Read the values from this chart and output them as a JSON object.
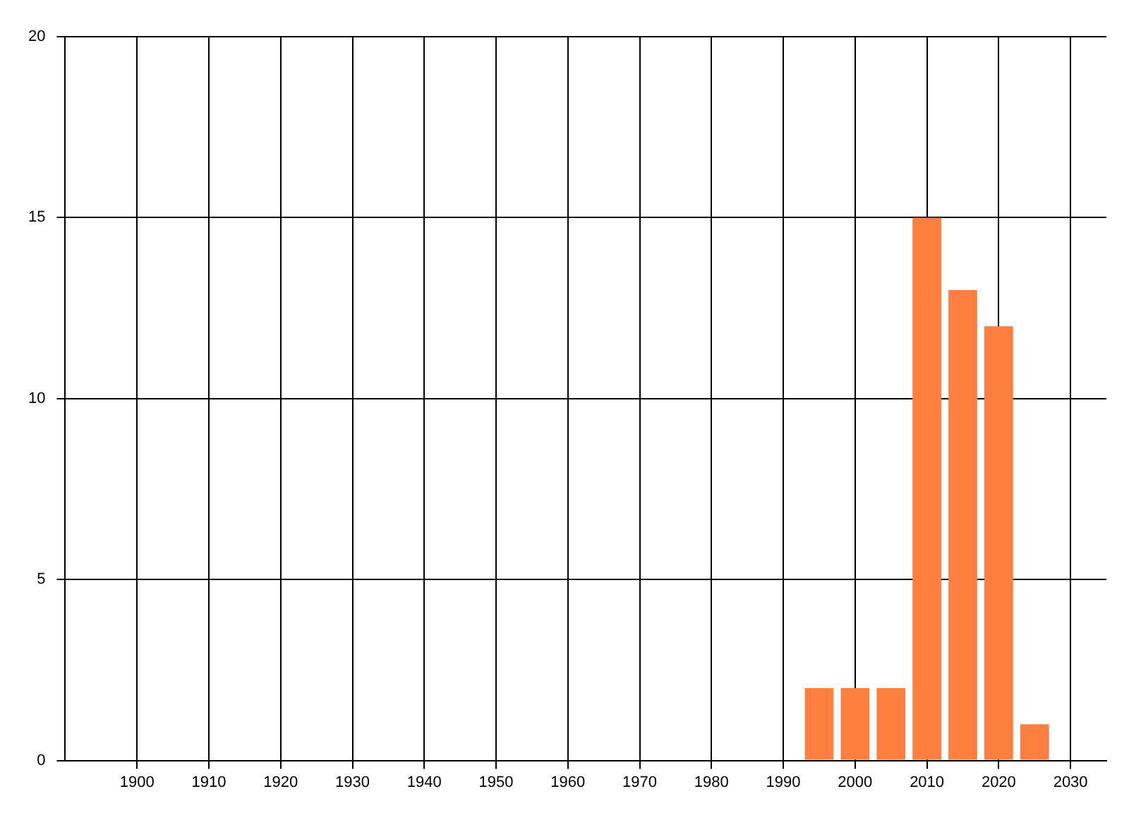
{
  "chart_data": {
    "type": "bar",
    "x": [
      1995,
      2000,
      2005,
      2010,
      2015,
      2020,
      2025
    ],
    "values": [
      2,
      2,
      2,
      15,
      13,
      12,
      1
    ],
    "color": "#ff7f41",
    "xlim": [
      1890,
      2035
    ],
    "xticks": [
      1900,
      1910,
      1920,
      1930,
      1940,
      1950,
      1960,
      1970,
      1980,
      1990,
      2000,
      2010,
      2020,
      2030
    ],
    "ylim": [
      0,
      20
    ],
    "yticks": [
      0,
      5,
      10,
      15,
      20
    ],
    "grid": true,
    "legend": false
  }
}
